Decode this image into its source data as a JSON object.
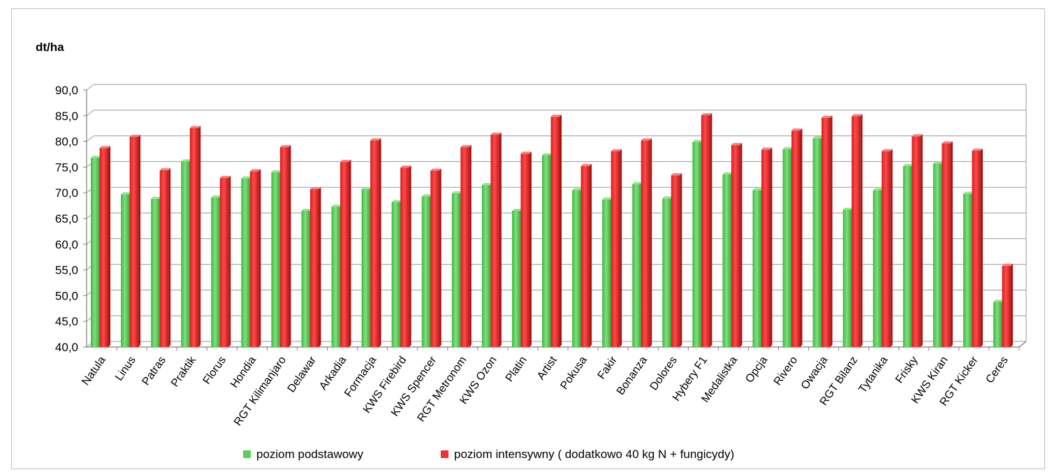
{
  "chart_data": {
    "type": "bar",
    "title": "",
    "xlabel": "",
    "ylabel": "dt/ha",
    "ylim": [
      40,
      90
    ],
    "ytick_step": 5,
    "ytick_labels": [
      "40,0",
      "45,0",
      "50,0",
      "55,0",
      "60,0",
      "65,0",
      "70,0",
      "75,0",
      "80,0",
      "85,0",
      "90,0"
    ],
    "grid": true,
    "legend_position": "bottom",
    "categories": [
      "Natula",
      "Linus",
      "Patras",
      "Praktik",
      "Florus",
      "Hondia",
      "RGT Kilimanjaro",
      "Delawar",
      "Arkadia",
      "Formacja",
      "KWS Firebird",
      "KWS Spencer",
      "RGT Metronom",
      "KWS Ozon",
      "Platin",
      "Artist",
      "Pokusa",
      "Fakir",
      "Bonanza",
      "Dolores",
      "Hybery F1",
      "Medalistka",
      "Opcja",
      "Rivero",
      "Owacja",
      "RGT Bilanz",
      "Tytanika",
      "Frisky",
      "KWS Kiran",
      "RGT Kicker",
      "Ceres"
    ],
    "series": [
      {
        "name": "poziom podstawowy",
        "color": "#5ad05a",
        "values": [
          76.8,
          69.7,
          68.8,
          76.1,
          69.1,
          72.8,
          74.0,
          66.5,
          67.3,
          70.7,
          68.2,
          69.3,
          69.9,
          71.5,
          66.5,
          77.3,
          70.5,
          68.7,
          71.7,
          68.9,
          79.9,
          73.6,
          70.5,
          78.5,
          80.6,
          66.7,
          70.5,
          75.2,
          75.7,
          69.8,
          48.8
        ]
      },
      {
        "name": "poziom intensywny ( dodatkowo 40 kg N + fungicydy)",
        "color": "#ee3333",
        "values": [
          78.7,
          80.9,
          74.4,
          82.6,
          72.9,
          74.2,
          78.9,
          70.7,
          76.0,
          80.2,
          74.9,
          74.3,
          78.9,
          81.3,
          77.6,
          84.8,
          75.2,
          78.1,
          80.2,
          73.4,
          85.1,
          79.3,
          78.4,
          82.1,
          84.6,
          84.9,
          78.1,
          81.0,
          79.6,
          78.2,
          55.8
        ]
      }
    ]
  }
}
